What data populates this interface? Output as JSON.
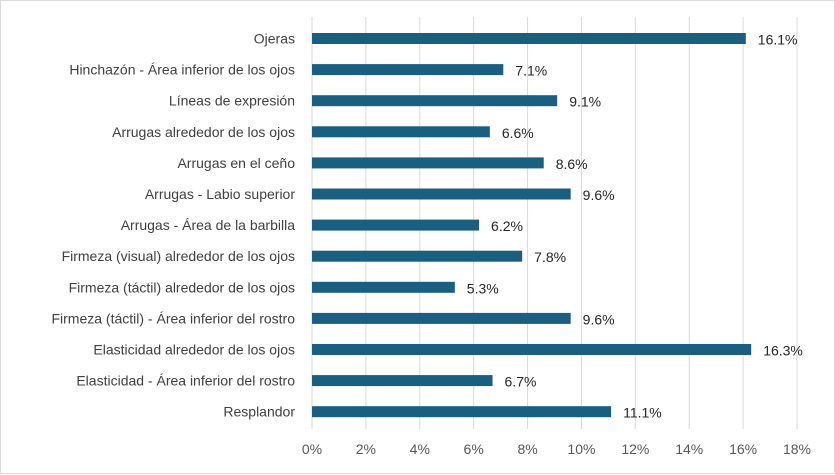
{
  "chart_data": {
    "type": "bar",
    "orientation": "horizontal",
    "title": "",
    "xlabel": "",
    "ylabel": "",
    "categories": [
      "Ojeras",
      "Hinchazón - Área inferior de los ojos",
      "Líneas de expresión",
      "Arrugas alrededor de los ojos",
      "Arrugas en el ceño",
      "Arrugas - Labio superior",
      "Arrugas - Área de la barbilla",
      "Firmeza (visual) alrededor de los ojos",
      "Firmeza (táctil) alrededor de los ojos",
      "Firmeza (táctil) - Área inferior del rostro",
      "Elasticidad alrededor de los ojos",
      "Elasticidad - Área inferior del rostro",
      "Resplandor"
    ],
    "values": [
      16.1,
      7.1,
      9.1,
      6.6,
      8.6,
      9.6,
      6.2,
      7.8,
      5.3,
      9.6,
      16.3,
      6.7,
      11.1
    ],
    "value_labels": [
      "16.1%",
      "7.1%",
      "9.1%",
      "6.6%",
      "8.6%",
      "9.6%",
      "6.2%",
      "7.8%",
      "5.3%",
      "9.6%",
      "16.3%",
      "6.7%",
      "11.1%"
    ],
    "xlim": [
      0,
      18
    ],
    "xticks": [
      0,
      2,
      4,
      6,
      8,
      10,
      12,
      14,
      16,
      18
    ],
    "xtick_labels": [
      "0%",
      "2%",
      "4%",
      "6%",
      "8%",
      "10%",
      "12%",
      "14%",
      "16%",
      "18%"
    ],
    "grid": true,
    "legend": "none",
    "colors": {
      "bar": "#1a5f80",
      "grid": "#d9d9d9",
      "category_text": "#404040",
      "value_text": "#262626",
      "tick_text": "#595959"
    }
  }
}
